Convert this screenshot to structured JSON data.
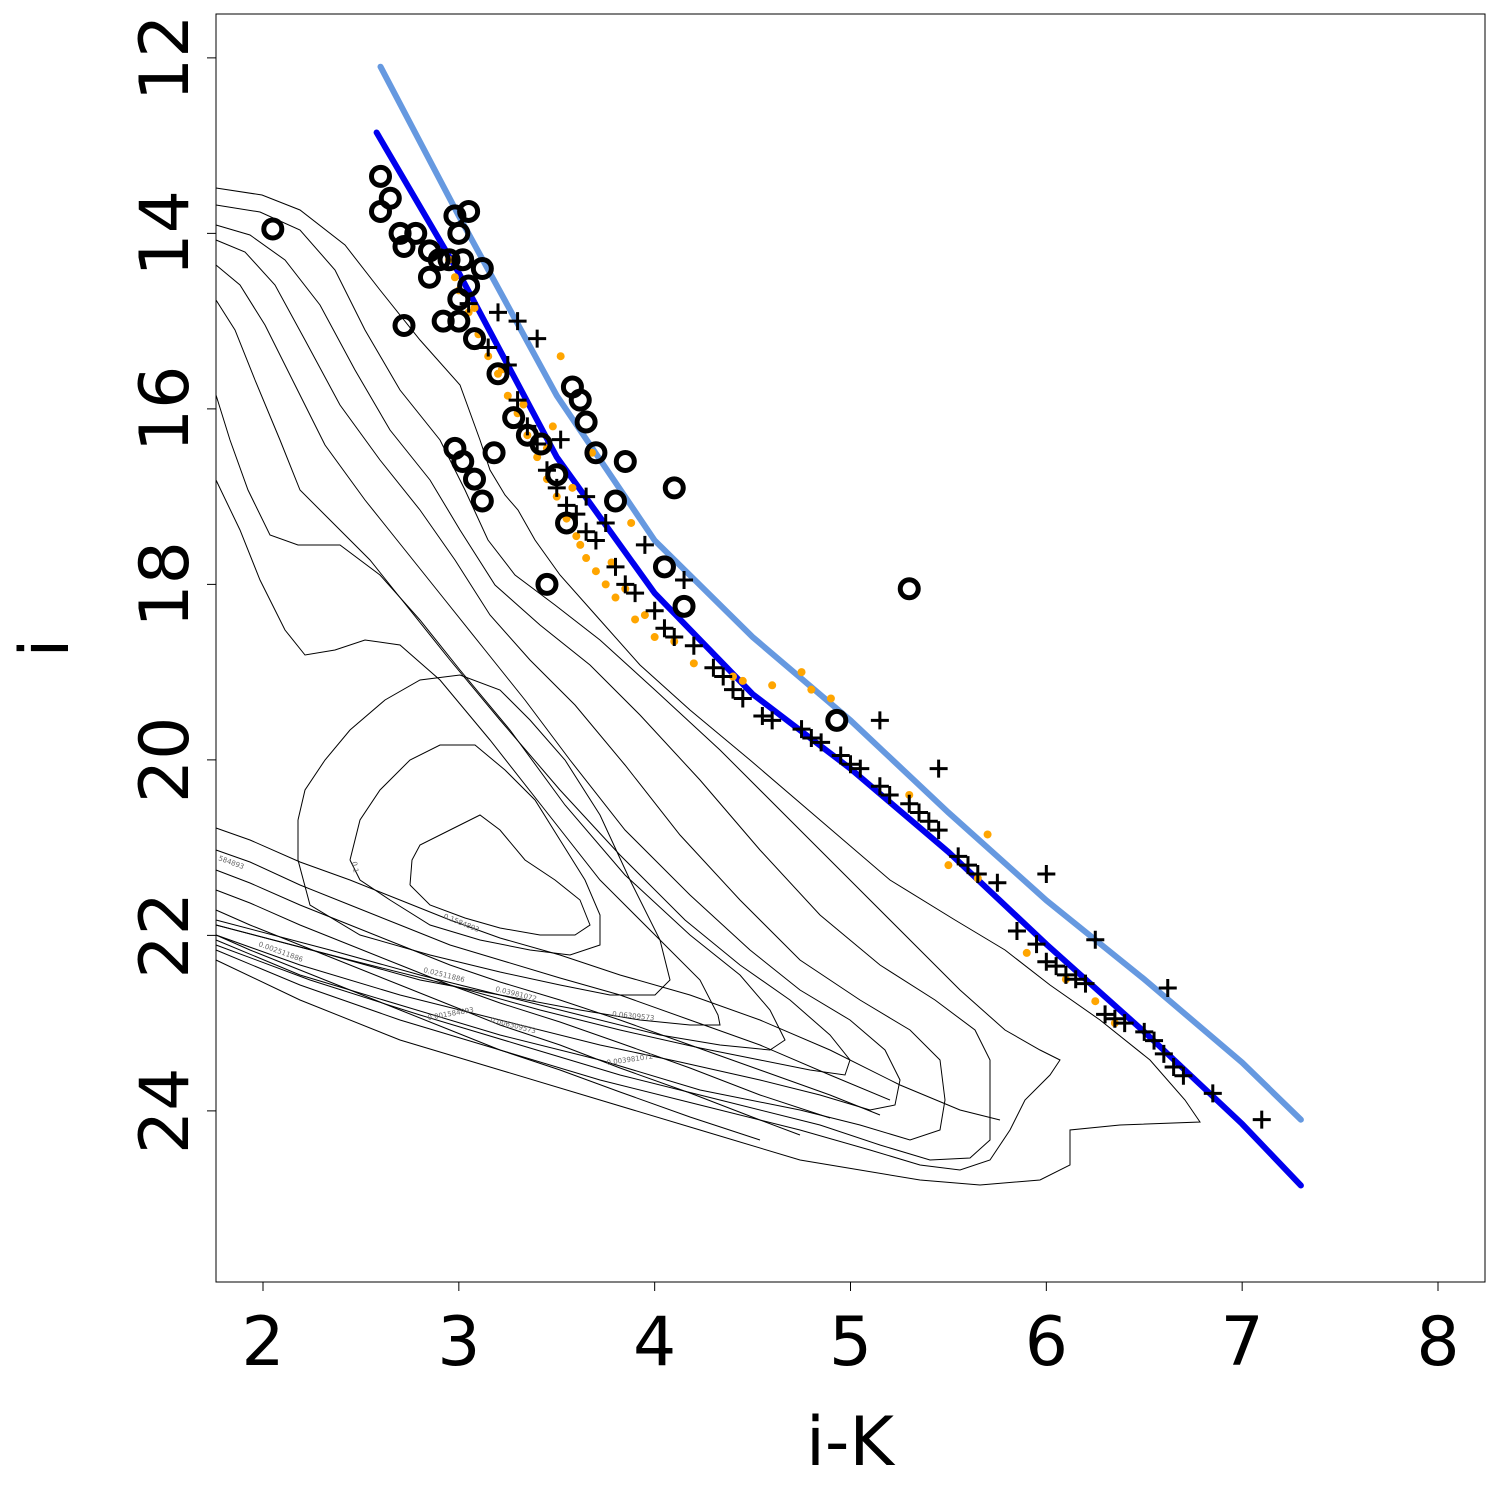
{
  "chart_data": {
    "type": "scatter",
    "title": "",
    "xlabel": "i-K",
    "ylabel": "i",
    "xlim": [
      1.76,
      8.24
    ],
    "ylim": [
      25.95,
      11.5
    ],
    "y_inverted": true,
    "grid": false,
    "legend": "none",
    "x_ticks": [
      "2",
      "3",
      "4",
      "5",
      "6",
      "7",
      "8"
    ],
    "y_ticks": [
      "12",
      "14",
      "16",
      "18",
      "20",
      "22",
      "24"
    ],
    "colors": {
      "axis": "#000000",
      "contour": "#000000",
      "contour_label": "#666666",
      "fit_dark": "#0000ee",
      "fit_light": "#6699e0",
      "orange_points": "#ffa500",
      "cross_points": "#000000",
      "circle_points": "#000000"
    },
    "series": [
      {
        "kind": "line",
        "color": "#6699e0",
        "x": [
          2.6,
          3.0,
          3.5,
          4.0,
          4.5,
          5.0,
          5.5,
          6.0,
          6.5,
          7.0,
          7.3
        ],
        "y": [
          12.1,
          13.8,
          15.85,
          17.5,
          18.6,
          19.55,
          20.6,
          21.6,
          22.5,
          23.45,
          24.1
        ]
      },
      {
        "kind": "line",
        "color": "#0000ee",
        "x": [
          2.58,
          3.0,
          3.5,
          4.0,
          4.5,
          5.0,
          5.5,
          6.0,
          6.5,
          7.0,
          7.3
        ],
        "y": [
          12.85,
          14.45,
          16.55,
          18.1,
          19.25,
          20.1,
          21.05,
          22.1,
          23.1,
          24.15,
          24.85
        ]
      },
      {
        "kind": "orange_points",
        "color": "#ffa500",
        "x": [
          2.95,
          3.0,
          3.05,
          3.1,
          3.15,
          3.2,
          3.25,
          3.3,
          3.35,
          3.4,
          3.45,
          3.5,
          3.55,
          3.6,
          3.65,
          3.7,
          3.75,
          3.8,
          3.9,
          4.0,
          4.2,
          4.4,
          4.6,
          4.8,
          4.9,
          5.3,
          5.7,
          5.9,
          6.1,
          6.35,
          2.98,
          3.08,
          3.22,
          3.33,
          3.45,
          3.58,
          3.62,
          3.78,
          3.85,
          3.95,
          4.1,
          4.45,
          4.75,
          5.5,
          5.65,
          6.25,
          3.48,
          3.52,
          3.68,
          3.88
        ],
        "y": [
          14.3,
          14.65,
          14.9,
          15.15,
          15.4,
          15.6,
          15.85,
          16.05,
          16.3,
          16.55,
          16.8,
          17.0,
          17.25,
          17.45,
          17.7,
          17.85,
          18.0,
          18.15,
          18.4,
          18.6,
          18.9,
          19.05,
          19.15,
          19.2,
          19.3,
          20.4,
          20.85,
          22.2,
          22.5,
          23.0,
          14.5,
          14.85,
          15.55,
          15.95,
          16.45,
          16.9,
          17.55,
          17.75,
          18.05,
          18.35,
          18.65,
          19.1,
          19.0,
          21.2,
          21.35,
          22.75,
          16.2,
          15.4,
          16.5,
          17.3
        ]
      },
      {
        "kind": "crosses",
        "color": "#000000",
        "x": [
          3.05,
          3.15,
          3.25,
          3.3,
          3.35,
          3.4,
          3.45,
          3.5,
          3.55,
          3.6,
          3.65,
          3.7,
          3.8,
          3.85,
          3.9,
          4.0,
          4.05,
          4.1,
          4.2,
          4.3,
          4.35,
          4.4,
          4.45,
          4.55,
          4.6,
          4.75,
          4.8,
          4.85,
          4.95,
          5.0,
          5.05,
          5.15,
          5.2,
          5.3,
          5.35,
          5.4,
          5.45,
          5.55,
          5.6,
          5.65,
          5.75,
          5.85,
          5.95,
          6.0,
          6.05,
          6.1,
          6.15,
          6.2,
          6.3,
          6.35,
          6.4,
          6.5,
          6.55,
          6.6,
          6.65,
          6.7,
          6.85,
          7.1,
          3.2,
          3.3,
          3.4,
          3.52,
          3.65,
          3.75,
          3.95,
          4.15,
          5.15,
          5.45,
          6.0,
          6.25,
          6.62
        ],
        "y": [
          14.8,
          15.3,
          15.5,
          15.9,
          16.2,
          16.4,
          16.7,
          16.9,
          17.1,
          17.2,
          17.4,
          17.5,
          17.8,
          18.0,
          18.1,
          18.3,
          18.5,
          18.6,
          18.7,
          18.95,
          19.05,
          19.2,
          19.3,
          19.5,
          19.55,
          19.65,
          19.75,
          19.8,
          19.95,
          20.05,
          20.1,
          20.3,
          20.4,
          20.5,
          20.6,
          20.7,
          20.8,
          21.1,
          21.2,
          21.3,
          21.4,
          21.95,
          22.1,
          22.3,
          22.35,
          22.45,
          22.5,
          22.55,
          22.9,
          22.95,
          23.0,
          23.1,
          23.2,
          23.35,
          23.5,
          23.6,
          23.8,
          24.1,
          14.9,
          15.0,
          15.2,
          16.35,
          17.0,
          17.3,
          17.55,
          17.95,
          19.55,
          20.1,
          21.3,
          22.05,
          22.6
        ]
      },
      {
        "kind": "circles",
        "color": "#000000",
        "x": [
          2.05,
          2.6,
          2.6,
          2.65,
          2.7,
          2.72,
          2.78,
          2.85,
          2.9,
          2.92,
          2.98,
          3.0,
          3.0,
          3.02,
          3.05,
          3.08,
          3.12,
          3.18,
          3.2,
          3.28,
          3.35,
          3.42,
          3.45,
          3.5,
          3.55,
          3.58,
          3.62,
          3.65,
          3.7,
          3.8,
          3.85,
          4.05,
          4.1,
          4.15,
          2.98,
          3.02,
          3.08,
          3.12,
          5.3,
          4.93,
          2.72,
          3.0,
          2.85,
          2.95,
          3.05
        ],
        "y": [
          13.95,
          13.35,
          13.75,
          13.6,
          14.0,
          15.05,
          14.0,
          14.2,
          14.3,
          15.0,
          13.8,
          14.0,
          14.75,
          14.3,
          13.75,
          15.2,
          14.4,
          16.5,
          15.6,
          16.1,
          16.3,
          16.4,
          18.0,
          16.75,
          17.3,
          15.75,
          15.9,
          16.15,
          16.5,
          17.05,
          16.6,
          17.8,
          16.9,
          18.25,
          16.45,
          16.6,
          16.8,
          17.05,
          18.05,
          19.55,
          14.15,
          15.0,
          14.5,
          14.3,
          14.6
        ]
      }
    ],
    "contour_labels": [
      "0.1",
      "0.1584893",
      "0.02511886",
      "0.03981072",
      "0.06309573",
      "0.006309573",
      "0.001584893",
      "0.003981072",
      "0.002511886",
      "584893"
    ]
  }
}
